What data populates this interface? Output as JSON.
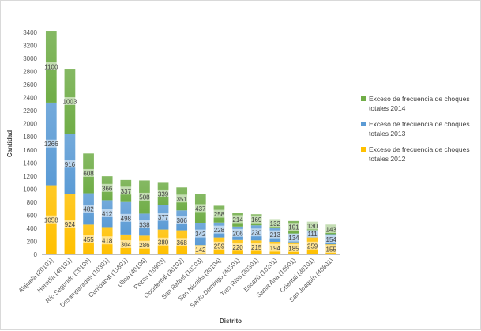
{
  "chart_data": {
    "type": "bar",
    "stacked": true,
    "title": "",
    "xlabel": "Distrito",
    "ylabel": "Cantidad",
    "ylim": [
      0,
      3400
    ],
    "ytick_step": 200,
    "grid": false,
    "legend_position": "right",
    "categories": [
      "Alajuela (20101)",
      "Heredia (40101)",
      "Río Segundo (20109)",
      "Desamparados (10301)",
      "Curridabat (11801)",
      "Ulloa (40104)",
      "Pozos (10903)",
      "Occidental (30102)",
      "San Rafael (10203)",
      "San Nicolás (30104)",
      "Santo Domingo (40301)",
      "Tres Ríos (30301)",
      "Escazú (10201)",
      "Santa Ana (10901)",
      "Oriental (30101)",
      "San Joaquín (40801)"
    ],
    "series": [
      {
        "name": "Exceso de frecuencia de choques totales 2012",
        "color": "#ffc000",
        "values": [
          1058,
          924,
          455,
          418,
          304,
          286,
          380,
          368,
          142,
          259,
          220,
          215,
          194,
          185,
          259,
          155
        ]
      },
      {
        "name": "Exceso de frecuencia de choques totales 2013",
        "color": "#5b9bd5",
        "values": [
          1266,
          916,
          482,
          412,
          498,
          338,
          377,
          306,
          342,
          228,
          206,
          230,
          213,
          134,
          111,
          154
        ]
      },
      {
        "name": "Exceso de frecuencia de choques totales 2014",
        "color": "#70ad47",
        "values": [
          1100,
          1003,
          608,
          366,
          337,
          508,
          339,
          351,
          437,
          258,
          214,
          169,
          132,
          191,
          130,
          143
        ]
      }
    ],
    "legend_lines": [
      [
        "Exceso de frecuencia de choques",
        "totales 2014"
      ],
      [
        "Exceso de frecuencia de choques",
        "totales 2013"
      ],
      [
        "Exceso de frecuencia de choques",
        "totales 2012"
      ]
    ]
  }
}
